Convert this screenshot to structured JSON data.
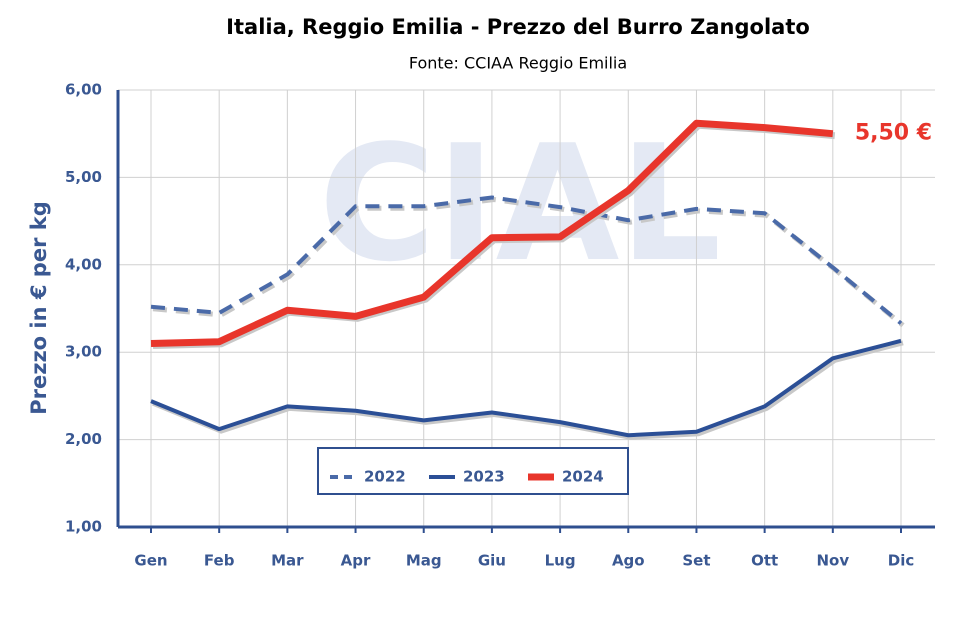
{
  "chart_data": {
    "type": "line",
    "title": "Italia, Reggio Emilia - Prezzo del Burro Zangolato",
    "subtitle": "Fonte: CCIAA Reggio Emilia",
    "y_label": "Prezzo in € per kg",
    "watermark": "CIAL",
    "annotation": "5,50 €",
    "categories": [
      "Gen",
      "Feb",
      "Mar",
      "Apr",
      "Mag",
      "Giu",
      "Lug",
      "Ago",
      "Set",
      "Ott",
      "Nov",
      "Dic"
    ],
    "series": [
      {
        "name": "2022",
        "color": "#4a6aa8",
        "dashed": true,
        "values": [
          3.52,
          3.45,
          3.89,
          4.67,
          4.67,
          4.77,
          4.66,
          4.51,
          4.64,
          4.59,
          3.97,
          3.33
        ]
      },
      {
        "name": "2023",
        "color": "#2b4f96",
        "dashed": false,
        "values": [
          2.44,
          2.12,
          2.38,
          2.33,
          2.22,
          2.31,
          2.2,
          2.05,
          2.09,
          2.38,
          2.93,
          3.13
        ]
      },
      {
        "name": "2024",
        "color": "#e8352b",
        "dashed": false,
        "values": [
          3.1,
          3.12,
          3.48,
          3.41,
          3.63,
          4.31,
          4.32,
          4.85,
          5.62,
          5.57,
          5.5,
          null
        ]
      }
    ],
    "ylim": [
      1,
      6
    ],
    "yticks": [
      {
        "value": 1,
        "label": "1,00"
      },
      {
        "value": 2,
        "label": "2,00"
      },
      {
        "value": 3,
        "label": "3,00"
      },
      {
        "value": 4,
        "label": "4,00"
      },
      {
        "value": 5,
        "label": "5,00"
      },
      {
        "value": 6,
        "label": "6,00"
      }
    ],
    "grid": true,
    "legend": "bottom"
  }
}
